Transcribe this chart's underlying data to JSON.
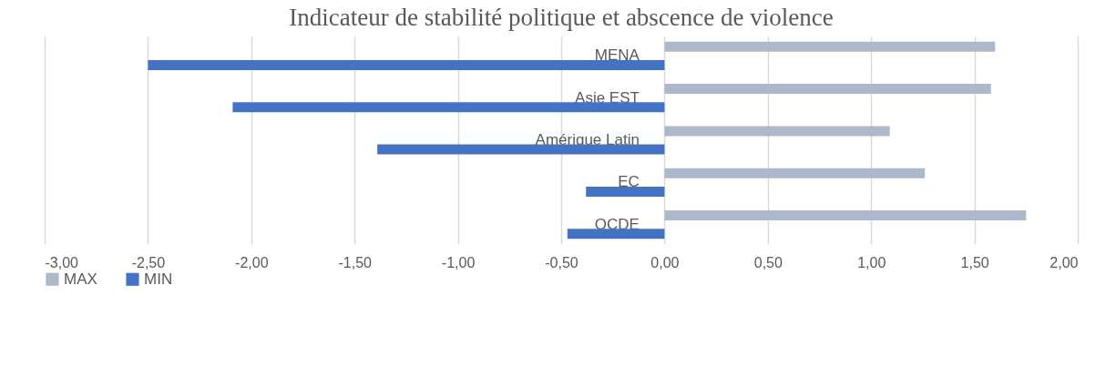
{
  "chart_data": {
    "type": "bar",
    "orientation": "horizontal",
    "title": "Indicateur de stabilité politique et abscence de violence",
    "categories": [
      "MENA",
      "Asie EST",
      "Amérique Latin",
      "EC",
      "OCDE"
    ],
    "series": [
      {
        "name": "MAX",
        "color": "#adb9ca",
        "values": [
          1.6,
          1.58,
          1.09,
          1.26,
          1.75
        ]
      },
      {
        "name": "MIN",
        "color": "#4472c4",
        "values": [
          -2.5,
          -2.09,
          -1.39,
          -0.38,
          -0.47
        ]
      }
    ],
    "xlim": [
      -3,
      2
    ],
    "xticks": [
      {
        "value": -3,
        "label": "-3,00"
      },
      {
        "value": -2.5,
        "label": "-2,50"
      },
      {
        "value": -2,
        "label": "-2,00"
      },
      {
        "value": -1.5,
        "label": "-1,50"
      },
      {
        "value": -1,
        "label": "-1,00"
      },
      {
        "value": -0.5,
        "label": "-0,50"
      },
      {
        "value": 0,
        "label": "0,00"
      },
      {
        "value": 0.5,
        "label": "0,50"
      },
      {
        "value": 1,
        "label": "1,00"
      },
      {
        "value": 1.5,
        "label": "1,50"
      },
      {
        "value": 2,
        "label": "2,00"
      }
    ],
    "grid": "x",
    "legend": "bottom"
  }
}
